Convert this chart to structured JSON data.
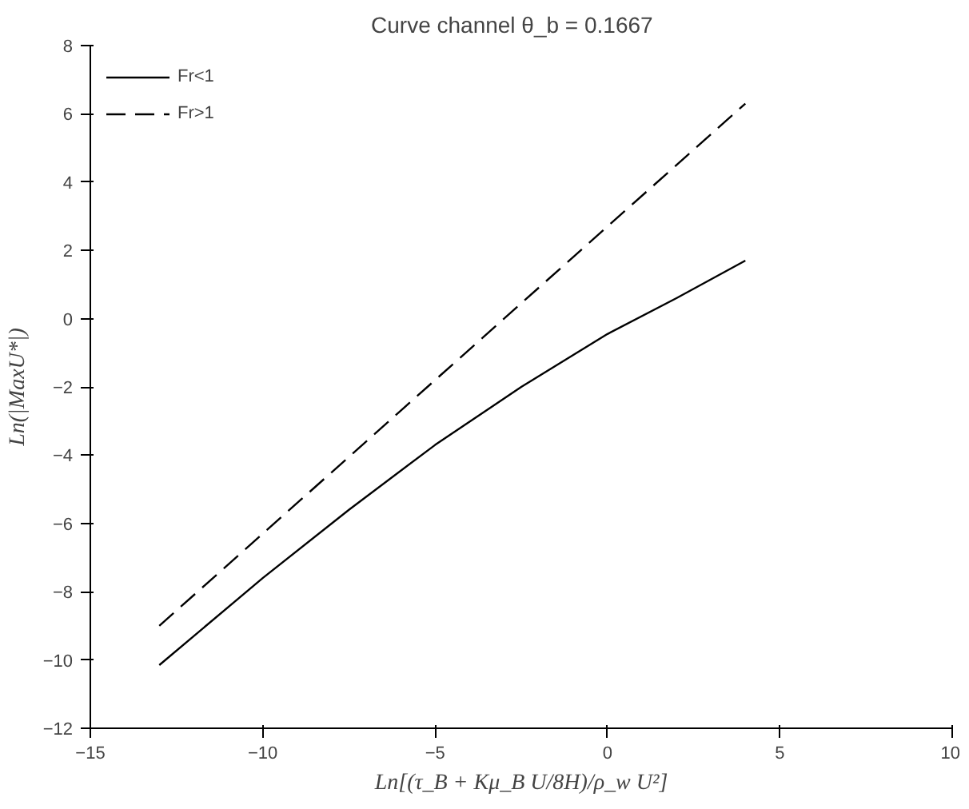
{
  "chart_data": {
    "type": "line",
    "title": "Curve channel    θ_b = 0.1667",
    "xlabel": "Ln[(τ_B + Kμ_B U/8H)/ρ_w U²]",
    "ylabel": "Ln(|MaxU*|)",
    "xlim": [
      -15,
      10
    ],
    "xticks": [
      -15,
      -10,
      -5,
      0,
      5,
      10
    ],
    "ylim": [
      -12,
      8
    ],
    "yticks": [
      -12,
      -10,
      -8,
      -6,
      -4,
      -2,
      0,
      2,
      4,
      6,
      8
    ],
    "grid": false,
    "legend": "top left",
    "marker": "none",
    "series": [
      {
        "name": "Fr<1",
        "color": "#000000",
        "line_style": "solid",
        "x": [
          -13,
          -10,
          -7.5,
          -5,
          -2.5,
          0,
          2,
          4
        ],
        "values": [
          -10.15,
          -7.6,
          -5.6,
          -3.7,
          -2.0,
          -0.45,
          0.6,
          1.7
        ]
      },
      {
        "name": "Fr>1",
        "color": "#000000",
        "line_style": "dashed",
        "x": [
          -13,
          4
        ],
        "values": [
          -9.0,
          6.3
        ]
      }
    ]
  }
}
